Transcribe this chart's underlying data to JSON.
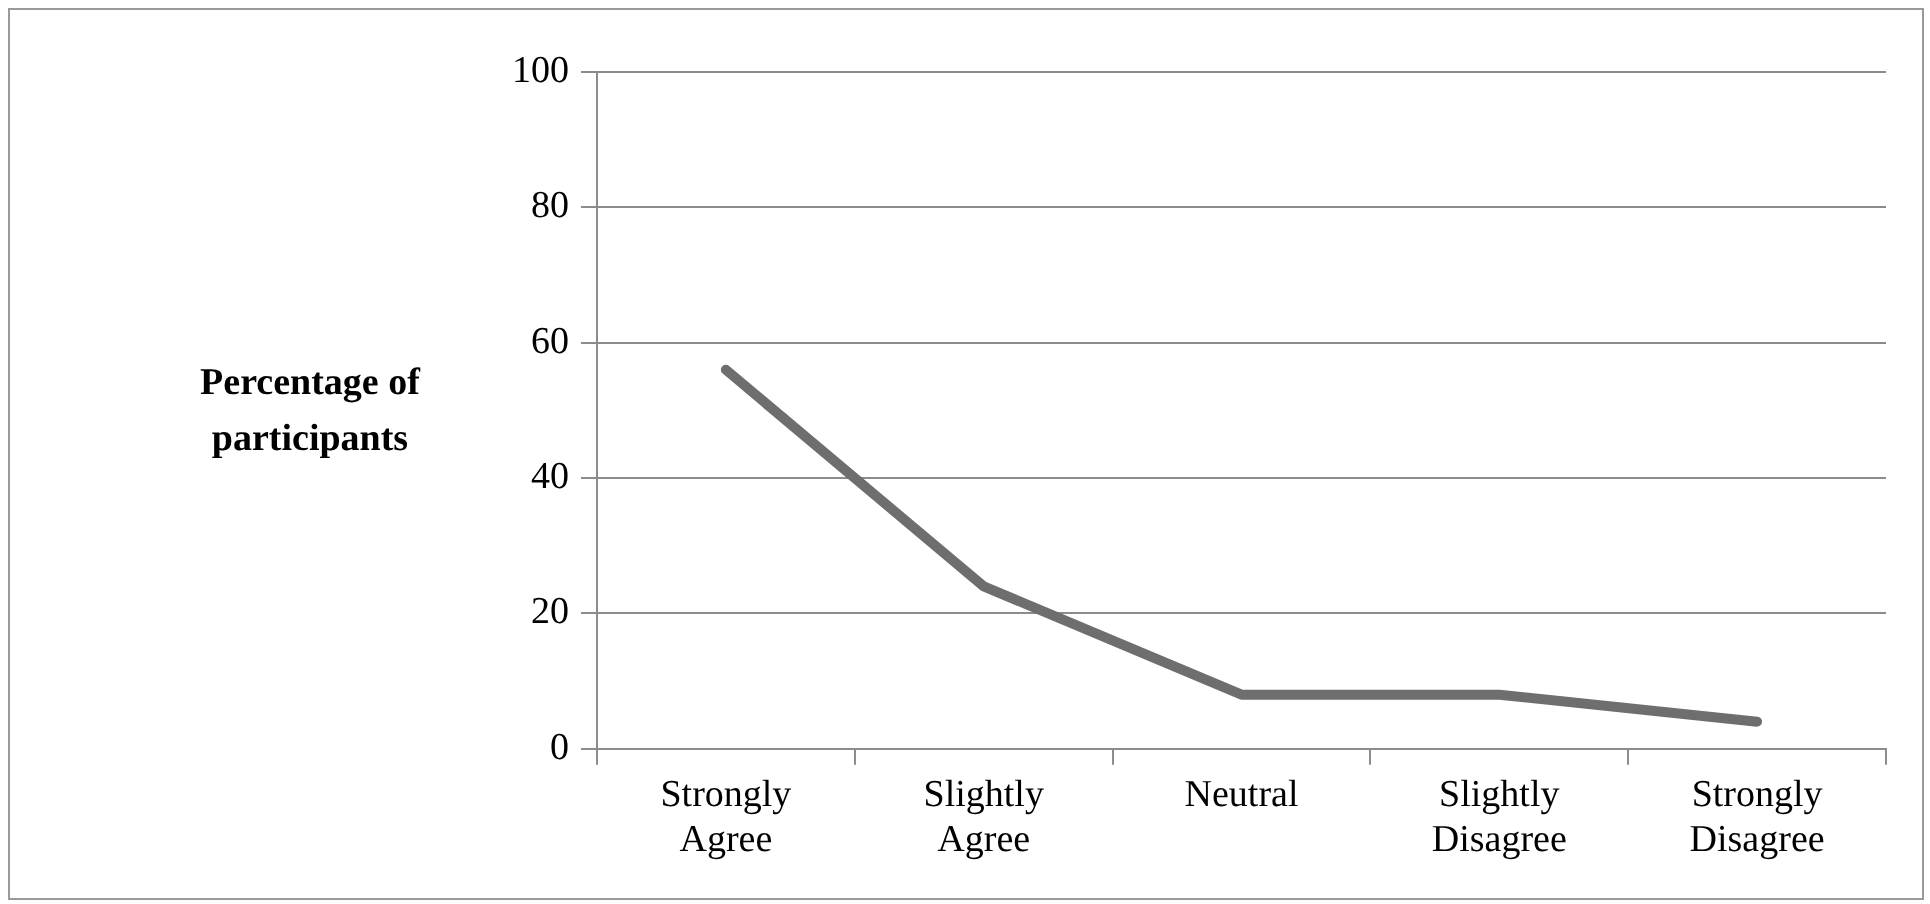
{
  "chart_data": {
    "type": "line",
    "ylabel": "Percentage of participants",
    "categories": [
      "Strongly Agree",
      "Slightly Agree",
      "Neutral",
      "Slightly Disagree",
      "Strongly Disagree"
    ],
    "series": [
      {
        "color": "#6e6e6e",
        "values": [
          56,
          24,
          8,
          8,
          4
        ]
      }
    ],
    "ylim": [
      0,
      100
    ],
    "yticks": [
      0,
      20,
      40,
      60,
      80,
      100
    ],
    "grid": "y",
    "legend": false,
    "marker": "none",
    "line_style": "solid"
  }
}
